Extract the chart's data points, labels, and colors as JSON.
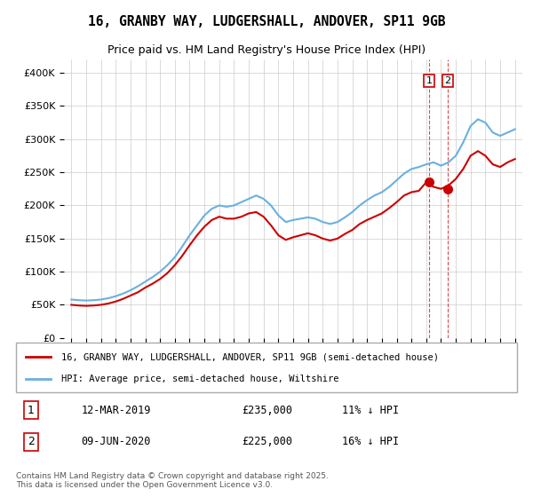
{
  "title": "16, GRANBY WAY, LUDGERSHALL, ANDOVER, SP11 9GB",
  "subtitle": "Price paid vs. HM Land Registry's House Price Index (HPI)",
  "legend_line1": "16, GRANBY WAY, LUDGERSHALL, ANDOVER, SP11 9GB (semi-detached house)",
  "legend_line2": "HPI: Average price, semi-detached house, Wiltshire",
  "footnote": "Contains HM Land Registry data © Crown copyright and database right 2025.\nThis data is licensed under the Open Government Licence v3.0.",
  "transaction1_label": "1",
  "transaction1_date": "12-MAR-2019",
  "transaction1_price": "£235,000",
  "transaction1_hpi": "11% ↓ HPI",
  "transaction2_label": "2",
  "transaction2_date": "09-JUN-2020",
  "transaction2_price": "£225,000",
  "transaction2_hpi": "16% ↓ HPI",
  "hpi_color": "#6ab0e0",
  "price_color": "#cc0000",
  "marker1_year": 2019.2,
  "marker2_year": 2020.45,
  "vline1_year": 2019.2,
  "vline2_year": 2020.45,
  "ylim": [
    0,
    420000
  ],
  "yticks": [
    0,
    50000,
    100000,
    150000,
    200000,
    250000,
    300000,
    350000,
    400000
  ],
  "ytick_labels": [
    "£0",
    "£50K",
    "£100K",
    "£150K",
    "£200K",
    "£250K",
    "£300K",
    "£350K",
    "£400K"
  ],
  "hpi_data": {
    "years": [
      1995,
      1995.5,
      1996,
      1996.5,
      1997,
      1997.5,
      1998,
      1998.5,
      1999,
      1999.5,
      2000,
      2000.5,
      2001,
      2001.5,
      2002,
      2002.5,
      2003,
      2003.5,
      2004,
      2004.5,
      2005,
      2005.5,
      2006,
      2006.5,
      2007,
      2007.5,
      2008,
      2008.5,
      2009,
      2009.5,
      2010,
      2010.5,
      2011,
      2011.5,
      2012,
      2012.5,
      2013,
      2013.5,
      2014,
      2014.5,
      2015,
      2015.5,
      2016,
      2016.5,
      2017,
      2017.5,
      2018,
      2018.5,
      2019,
      2019.5,
      2020,
      2020.5,
      2021,
      2021.5,
      2022,
      2022.5,
      2023,
      2023.5,
      2024,
      2024.5,
      2025
    ],
    "values": [
      58000,
      57000,
      56500,
      57000,
      58000,
      60000,
      63000,
      67000,
      72000,
      78000,
      85000,
      92000,
      100000,
      110000,
      122000,
      138000,
      155000,
      170000,
      185000,
      195000,
      200000,
      198000,
      200000,
      205000,
      210000,
      215000,
      210000,
      200000,
      185000,
      175000,
      178000,
      180000,
      182000,
      180000,
      175000,
      172000,
      175000,
      182000,
      190000,
      200000,
      208000,
      215000,
      220000,
      228000,
      238000,
      248000,
      255000,
      258000,
      262000,
      265000,
      260000,
      265000,
      275000,
      295000,
      320000,
      330000,
      325000,
      310000,
      305000,
      310000,
      315000
    ]
  },
  "price_data": {
    "years": [
      1995,
      1995.5,
      1996,
      1996.5,
      1997,
      1997.5,
      1998,
      1998.5,
      1999,
      1999.5,
      2000,
      2000.5,
      2001,
      2001.5,
      2002,
      2002.5,
      2003,
      2003.5,
      2004,
      2004.5,
      2005,
      2005.5,
      2006,
      2006.5,
      2007,
      2007.5,
      2008,
      2008.5,
      2009,
      2009.5,
      2010,
      2010.5,
      2011,
      2011.5,
      2012,
      2012.5,
      2013,
      2013.5,
      2014,
      2014.5,
      2015,
      2015.5,
      2016,
      2016.5,
      2017,
      2017.5,
      2018,
      2018.5,
      2019,
      2019.5,
      2020,
      2020.5,
      2021,
      2021.5,
      2022,
      2022.5,
      2023,
      2023.5,
      2024,
      2024.5,
      2025
    ],
    "values": [
      50000,
      49000,
      48500,
      49000,
      50000,
      52000,
      55000,
      59000,
      64000,
      69000,
      76000,
      82000,
      89000,
      98000,
      110000,
      124000,
      140000,
      155000,
      168000,
      178000,
      183000,
      180000,
      180000,
      183000,
      188000,
      190000,
      183000,
      170000,
      155000,
      148000,
      152000,
      155000,
      158000,
      155000,
      150000,
      147000,
      150000,
      157000,
      163000,
      172000,
      178000,
      183000,
      188000,
      196000,
      205000,
      215000,
      220000,
      222000,
      235000,
      228000,
      225000,
      230000,
      240000,
      255000,
      275000,
      282000,
      275000,
      262000,
      258000,
      265000,
      270000
    ]
  }
}
